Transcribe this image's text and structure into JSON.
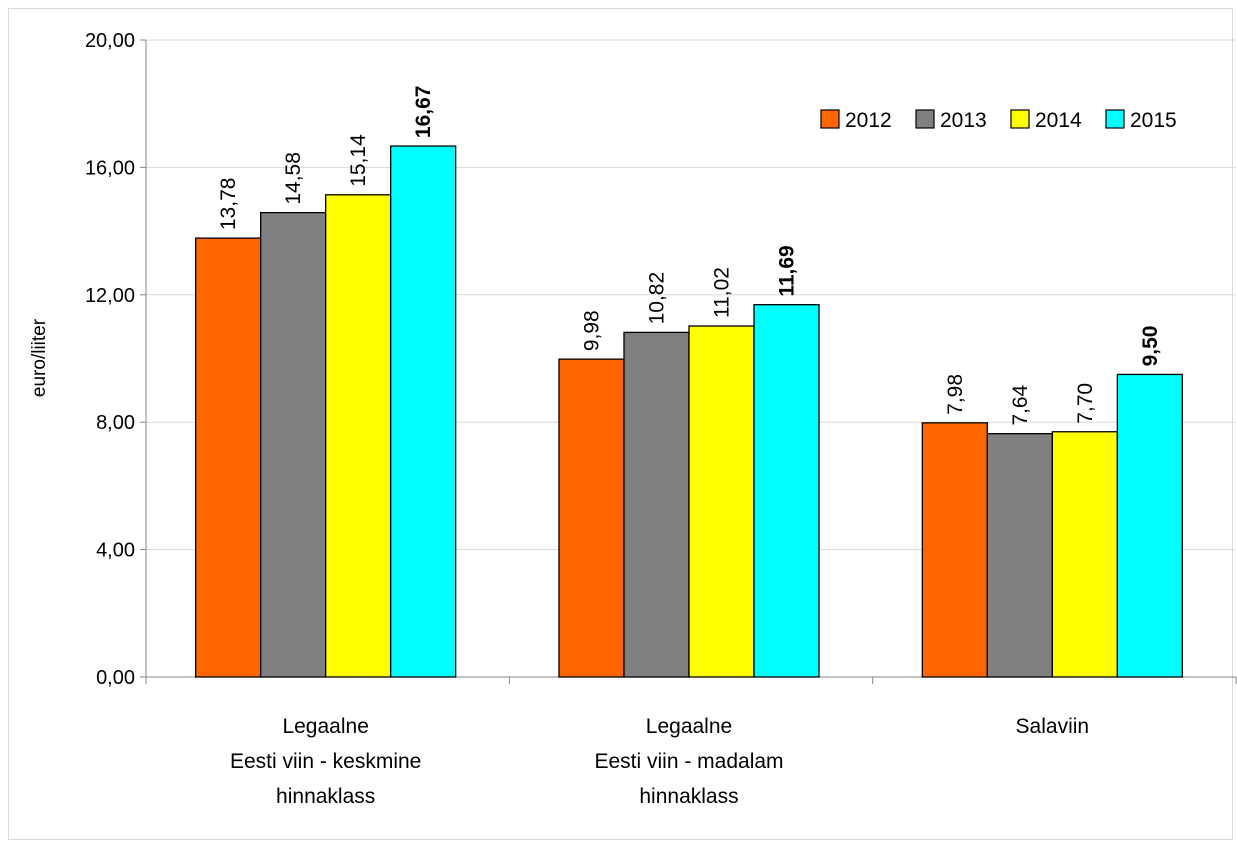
{
  "chart_data": {
    "type": "bar",
    "title": "",
    "xlabel": "",
    "ylabel": "euro/liiter",
    "ylim": [
      0,
      20
    ],
    "yticks": [
      "0,00",
      "4,00",
      "8,00",
      "12,00",
      "16,00",
      "20,00"
    ],
    "grid": true,
    "legend_position": "top-right",
    "categories": [
      [
        "Legaalne",
        "Eesti viin - keskmine",
        "hinnaklass"
      ],
      [
        "Legaalne",
        "Eesti viin - madalam",
        "hinnaklass"
      ],
      [
        "Salaviin"
      ]
    ],
    "series": [
      {
        "name": "2012",
        "color": "#ff6600",
        "values": [
          13.78,
          9.98,
          7.98
        ],
        "labels": [
          "13,78",
          "9,98",
          "7,98"
        ],
        "label_bold": false
      },
      {
        "name": "2013",
        "color": "#808080",
        "values": [
          14.58,
          10.82,
          7.64
        ],
        "labels": [
          "14,58",
          "10,82",
          "7,64"
        ],
        "label_bold": false
      },
      {
        "name": "2014",
        "color": "#ffff00",
        "values": [
          15.14,
          11.02,
          7.7
        ],
        "labels": [
          "15,14",
          "11,02",
          "7,70"
        ],
        "label_bold": false
      },
      {
        "name": "2015",
        "color": "#00ffff",
        "values": [
          16.67,
          11.69,
          9.5
        ],
        "labels": [
          "16,67",
          "11,69",
          "9,50"
        ],
        "label_bold": true
      }
    ]
  }
}
